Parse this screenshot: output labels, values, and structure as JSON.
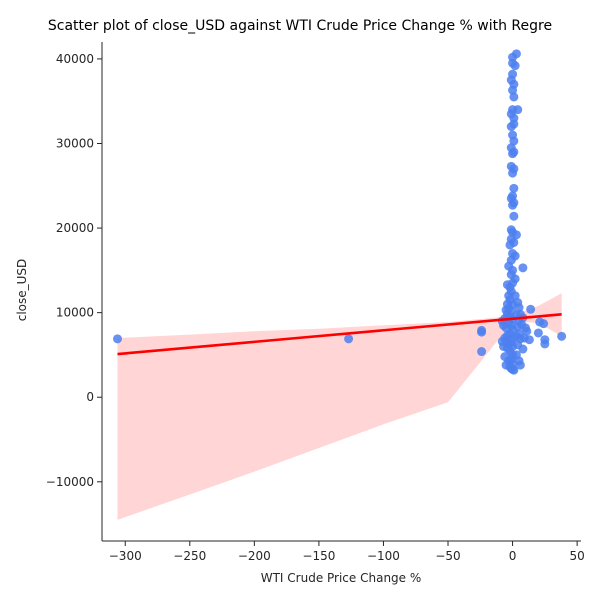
{
  "chart_data": {
    "type": "scatter",
    "title": "Scatter plot of close_USD against WTI Crude Price Change % with Regre",
    "xlabel": "WTI Crude Price Change %",
    "ylabel": "close_USD",
    "xlim": [
      -318,
      53
    ],
    "ylim": [
      -17000,
      42000
    ],
    "x_ticks": [
      -300,
      -250,
      -200,
      -150,
      -100,
      -50,
      0,
      50
    ],
    "y_ticks": [
      -10000,
      0,
      10000,
      20000,
      30000,
      40000
    ],
    "x_tick_labels": [
      "−300",
      "−250",
      "−200",
      "−150",
      "−100",
      "−50",
      "0",
      "50"
    ],
    "y_tick_labels": [
      "−10000",
      "0",
      "10000",
      "20000",
      "30000",
      "40000"
    ],
    "grid": false,
    "points": [
      [
        -306,
        6900
      ],
      [
        -127,
        6900
      ],
      [
        -24,
        7900
      ],
      [
        -24,
        7700
      ],
      [
        -24,
        5400
      ],
      [
        38,
        7200
      ],
      [
        25,
        6800
      ],
      [
        25,
        6300
      ],
      [
        24,
        8700
      ],
      [
        21,
        8900
      ],
      [
        20,
        7600
      ],
      [
        14,
        10400
      ],
      [
        13,
        6800
      ],
      [
        11,
        7800
      ],
      [
        8,
        15300
      ],
      [
        6,
        3800
      ],
      [
        5,
        9000
      ],
      [
        4,
        34000
      ],
      [
        3,
        40600
      ],
      [
        3,
        19200
      ],
      [
        2,
        39200
      ],
      [
        2,
        16700
      ],
      [
        2,
        14000
      ],
      [
        2,
        12000
      ],
      [
        1,
        37000
      ],
      [
        1,
        35500
      ],
      [
        1,
        33000
      ],
      [
        1,
        32300
      ],
      [
        1,
        30300
      ],
      [
        1,
        29000
      ],
      [
        1,
        27000
      ],
      [
        1,
        24700
      ],
      [
        1,
        23000
      ],
      [
        1,
        21400
      ],
      [
        1,
        18300
      ],
      [
        1,
        3200
      ],
      [
        0,
        40200
      ],
      [
        0,
        39500
      ],
      [
        0,
        38200
      ],
      [
        0,
        36300
      ],
      [
        0,
        34000
      ],
      [
        0,
        31000
      ],
      [
        0,
        28800
      ],
      [
        0,
        26500
      ],
      [
        0,
        23800
      ],
      [
        0,
        22700
      ],
      [
        0,
        19500
      ],
      [
        0,
        17000
      ],
      [
        0,
        15000
      ],
      [
        0,
        13500
      ],
      [
        0,
        11000
      ],
      [
        0,
        9200
      ],
      [
        0,
        8000
      ],
      [
        0,
        7000
      ],
      [
        0,
        6000
      ],
      [
        0,
        5000
      ],
      [
        0,
        4000
      ],
      [
        0,
        3300
      ],
      [
        -1,
        37500
      ],
      [
        -1,
        33500
      ],
      [
        -1,
        32000
      ],
      [
        -1,
        29500
      ],
      [
        -1,
        27300
      ],
      [
        -1,
        23500
      ],
      [
        -1,
        19800
      ],
      [
        -1,
        18700
      ],
      [
        -1,
        16200
      ],
      [
        -1,
        14500
      ],
      [
        -1,
        12500
      ],
      [
        -1,
        10200
      ],
      [
        -1,
        8500
      ],
      [
        -1,
        6500
      ],
      [
        -1,
        4500
      ],
      [
        -1,
        3400
      ],
      [
        -2,
        18000
      ],
      [
        -2,
        13000
      ],
      [
        -2,
        11500
      ],
      [
        -2,
        9500
      ],
      [
        -2,
        7500
      ],
      [
        -2,
        5500
      ],
      [
        -2,
        3600
      ],
      [
        -3,
        15500
      ],
      [
        -3,
        12000
      ],
      [
        -3,
        10500
      ],
      [
        -3,
        8800
      ],
      [
        -3,
        6300
      ],
      [
        -3,
        4300
      ],
      [
        -4,
        13300
      ],
      [
        -4,
        11000
      ],
      [
        -4,
        9800
      ],
      [
        -4,
        7300
      ],
      [
        -4,
        5800
      ],
      [
        -5,
        10300
      ],
      [
        -5,
        8200
      ],
      [
        -5,
        6600
      ],
      [
        -5,
        3800
      ],
      [
        -6,
        9300
      ],
      [
        -6,
        7000
      ],
      [
        -6,
        4800
      ],
      [
        -7,
        8500
      ],
      [
        -7,
        6000
      ],
      [
        -8,
        9000
      ],
      [
        -8,
        6600
      ],
      [
        3,
        9700
      ],
      [
        3,
        7200
      ],
      [
        3,
        5000
      ],
      [
        4,
        11200
      ],
      [
        4,
        8300
      ],
      [
        4,
        6200
      ],
      [
        5,
        10600
      ],
      [
        5,
        7500
      ],
      [
        5,
        4300
      ],
      [
        6,
        9800
      ],
      [
        6,
        6900
      ],
      [
        7,
        8600
      ],
      [
        8,
        9400
      ],
      [
        8,
        5700
      ],
      [
        9,
        7000
      ],
      [
        10,
        8200
      ]
    ],
    "regression": {
      "x_range": [
        -306,
        38
      ],
      "line": [
        [
          -306,
          5100
        ],
        [
          38,
          9800
        ]
      ],
      "ci_lower": [
        [
          -306,
          -14500
        ],
        [
          -250,
          -11500
        ],
        [
          -200,
          -8800
        ],
        [
          -150,
          -6000
        ],
        [
          -100,
          -3200
        ],
        [
          -50,
          -600
        ],
        [
          0,
          8900
        ],
        [
          20,
          8800
        ],
        [
          38,
          7200
        ]
      ],
      "ci_upper": [
        [
          -306,
          7000
        ],
        [
          -250,
          7400
        ],
        [
          -200,
          7800
        ],
        [
          -150,
          8100
        ],
        [
          -100,
          8500
        ],
        [
          -50,
          8900
        ],
        [
          0,
          9600
        ],
        [
          20,
          10800
        ],
        [
          38,
          12300
        ]
      ]
    },
    "colors": {
      "points": "#4c7ff0",
      "line": "#ff0000",
      "band": "#ffb3b3",
      "axis": "#262626"
    }
  }
}
